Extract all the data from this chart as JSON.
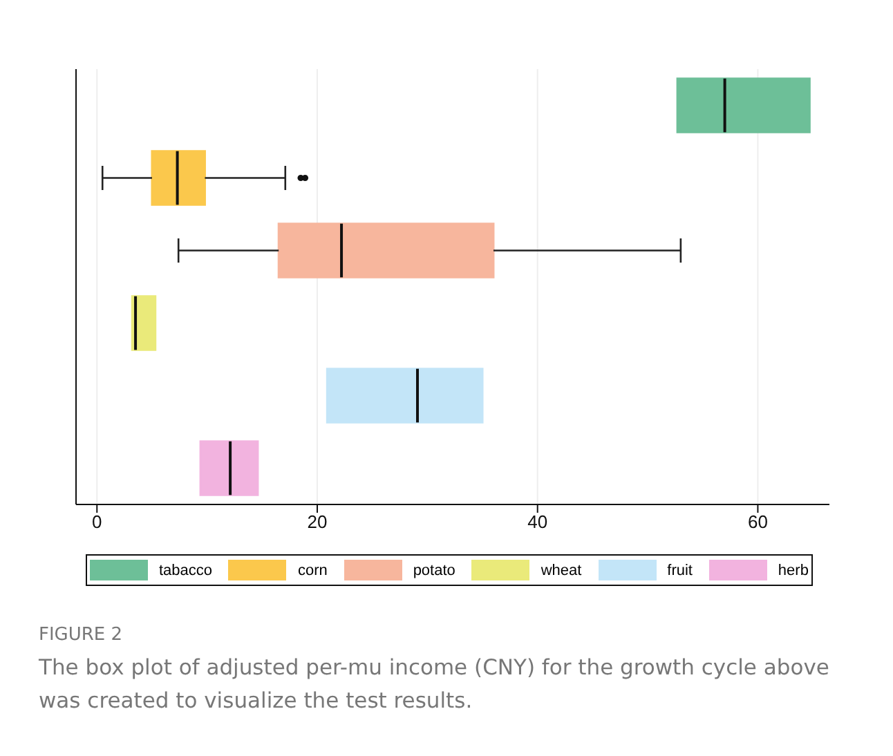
{
  "chart_data": {
    "type": "box",
    "orientation": "horizontal",
    "categories": [
      null,
      null,
      null,
      null,
      null,
      null
    ],
    "xlim": [
      -1.9,
      66.5
    ],
    "xticks": [
      0,
      20,
      40,
      60
    ],
    "grid": "x",
    "legend": "bottom",
    "series": [
      {
        "name": "tabacco",
        "color": "#6dbf98",
        "boxes": [
          {
            "low": 52.7,
            "q1": 52.7,
            "median": 57.0,
            "q3": 64.7,
            "high": 64.7
          },
          null,
          null,
          null,
          null,
          null
        ]
      },
      {
        "name": "corn",
        "color": "#fbc84c",
        "boxes": [
          null,
          {
            "low": 0.5,
            "q1": 5.0,
            "median": 7.3,
            "q3": 9.8,
            "high": 17.1,
            "outliers": [
              18.5,
              18.9
            ]
          },
          null,
          null,
          null,
          null
        ]
      },
      {
        "name": "potato",
        "color": "#f7b69d",
        "boxes": [
          null,
          null,
          {
            "low": 7.4,
            "q1": 16.5,
            "median": 22.2,
            "q3": 36.0,
            "high": 53.0
          },
          null,
          null,
          null
        ]
      },
      {
        "name": "wheat",
        "color": "#eaea7a",
        "boxes": [
          null,
          null,
          null,
          {
            "low": 3.2,
            "q1": 3.2,
            "median": 3.5,
            "q3": 5.3,
            "high": 5.3
          },
          null,
          null
        ]
      },
      {
        "name": "fruit",
        "color": "#c3e5f8",
        "boxes": [
          null,
          null,
          null,
          null,
          {
            "low": 20.9,
            "q1": 20.9,
            "median": 29.1,
            "q3": 35.0,
            "high": 35.0
          },
          null
        ]
      },
      {
        "name": "herb",
        "color": "#f2b3df",
        "boxes": [
          null,
          null,
          null,
          null,
          null,
          {
            "low": 9.4,
            "q1": 9.4,
            "median": 12.1,
            "q3": 14.6,
            "high": 14.6
          }
        ]
      }
    ],
    "annotations": [
      "FIGURE 2",
      "The box plot of adjusted per-mu income (CNY) for the growth cycle above was created to visualize the test results."
    ]
  }
}
